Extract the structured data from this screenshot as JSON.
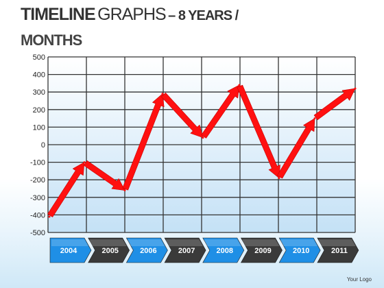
{
  "title": {
    "part1": "TIMELINE",
    "part2": "GRAPHS",
    "part3": "– 8 YEARS /",
    "part4": "MONTHS"
  },
  "footer": {
    "logo_text": "Your Logo"
  },
  "colors": {
    "line": "#ff1010",
    "grid": "#333333",
    "plot_bg_top": "#ffffff",
    "plot_bg_bottom": "#c4e1f6",
    "arrow_blue": "#1f8fe6",
    "arrow_dark": "#3a3a3a"
  },
  "chart_data": {
    "type": "line",
    "title": "",
    "xlabel": "",
    "ylabel": "",
    "categories": [
      "2004",
      "2005",
      "2006",
      "2007",
      "2008",
      "2009",
      "2010",
      "2011"
    ],
    "y_ticks": [
      "500",
      "400",
      "300",
      "200",
      "100",
      "0",
      "-100",
      "-200",
      "-300",
      "-400",
      "-500"
    ],
    "ylim": [
      -500,
      500
    ],
    "grid": true,
    "legend": "none",
    "series": [
      {
        "name": "",
        "x": [
          "2004",
          "2004",
          "2005",
          "2006",
          "2007",
          "2008",
          "2009",
          "2010",
          "2011"
        ],
        "values": [
          -410,
          -100,
          -260,
          290,
          40,
          340,
          -190,
          150,
          320
        ]
      }
    ]
  }
}
